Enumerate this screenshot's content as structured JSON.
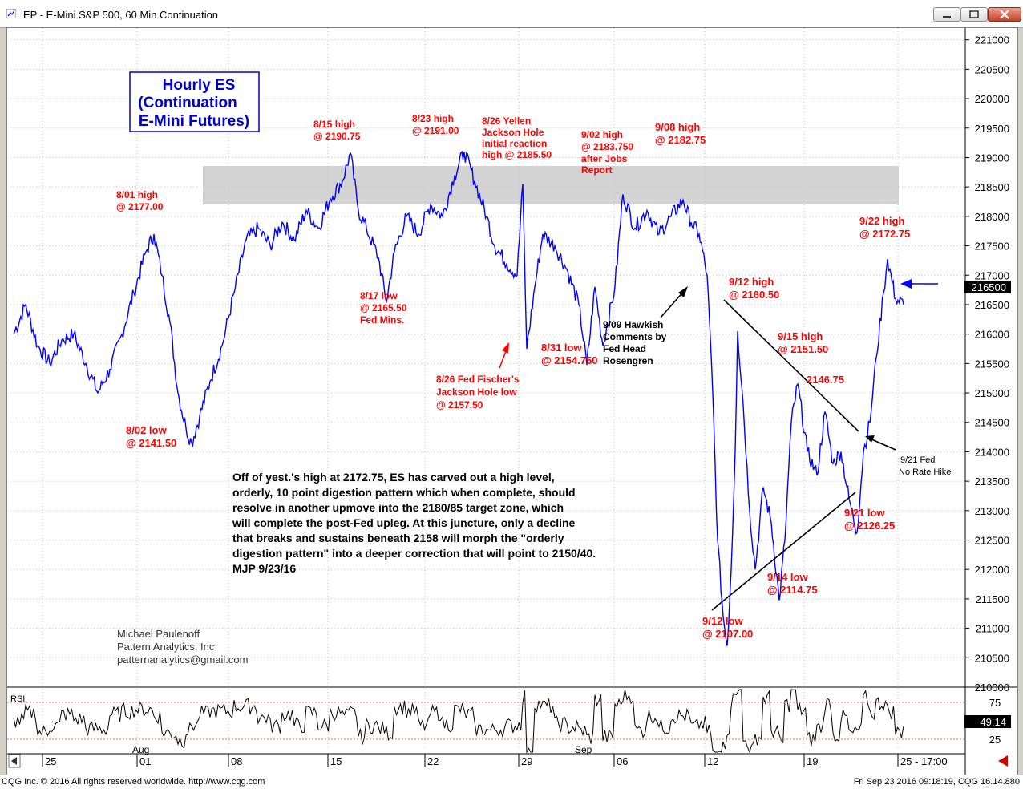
{
  "window": {
    "title": "EP - E-Mini S&P 500, 60 Min Continuation",
    "footer_left": "CQG Inc. © 2016 All rights reserved worldwide. http://www.cqg.com",
    "footer_right": "Fri Sep 23 2016 09:18:19, CQG 16.14.880"
  },
  "chart_data": {
    "type": "line",
    "title_box": [
      "Hourly ES",
      "(Continuation",
      "E-Mini Futures)"
    ],
    "ylim": [
      2100,
      2212
    ],
    "y_ticks": [
      210000,
      210500,
      211000,
      211500,
      212000,
      212500,
      213000,
      213500,
      214000,
      214500,
      215000,
      215500,
      216000,
      216500,
      217000,
      217500,
      218000,
      218500,
      219000,
      219500,
      220000,
      220500,
      221000
    ],
    "x_tick_labels": [
      "25",
      "01",
      "08",
      "15",
      "22",
      "29",
      "06",
      "12",
      "19",
      "25 - 17:00"
    ],
    "month_labels": [
      "Aug",
      "Sep"
    ],
    "last_price_label": "216500",
    "rsi": {
      "label": "RSI",
      "levels": [
        "75",
        "25"
      ],
      "value_label": "49.14"
    },
    "series": [
      {
        "values": [
          [
            0,
            2160
          ],
          [
            15,
            2165
          ],
          [
            30,
            2158
          ],
          [
            45,
            2155
          ],
          [
            60,
            2159
          ],
          [
            75,
            2160
          ],
          [
            90,
            2155
          ],
          [
            105,
            2150
          ],
          [
            120,
            2154
          ],
          [
            135,
            2160
          ],
          [
            150,
            2167
          ],
          [
            165,
            2174
          ],
          [
            175,
            2177
          ],
          [
            185,
            2170
          ],
          [
            195,
            2162
          ],
          [
            205,
            2150
          ],
          [
            215,
            2144
          ],
          [
            222,
            2141.5
          ],
          [
            232,
            2146
          ],
          [
            245,
            2152
          ],
          [
            260,
            2158
          ],
          [
            275,
            2167
          ],
          [
            290,
            2176
          ],
          [
            305,
            2178
          ],
          [
            320,
            2175
          ],
          [
            335,
            2179
          ],
          [
            350,
            2176
          ],
          [
            365,
            2181
          ],
          [
            380,
            2178
          ],
          [
            395,
            2183
          ],
          [
            410,
            2186
          ],
          [
            420,
            2190.75
          ],
          [
            430,
            2181
          ],
          [
            440,
            2178
          ],
          [
            455,
            2173
          ],
          [
            465,
            2165.5
          ],
          [
            475,
            2174
          ],
          [
            490,
            2180
          ],
          [
            505,
            2177
          ],
          [
            520,
            2182
          ],
          [
            535,
            2180
          ],
          [
            550,
            2187
          ],
          [
            562,
            2191
          ],
          [
            575,
            2186
          ],
          [
            590,
            2180
          ],
          [
            600,
            2175
          ],
          [
            615,
            2172
          ],
          [
            628,
            2170
          ],
          [
            635,
            2185.5
          ],
          [
            640,
            2157.5
          ],
          [
            650,
            2168
          ],
          [
            660,
            2177
          ],
          [
            675,
            2175
          ],
          [
            690,
            2171
          ],
          [
            705,
            2165
          ],
          [
            715,
            2154.75
          ],
          [
            725,
            2168
          ],
          [
            735,
            2158
          ],
          [
            750,
            2168
          ],
          [
            760,
            2183.75
          ],
          [
            775,
            2178
          ],
          [
            790,
            2181
          ],
          [
            805,
            2177
          ],
          [
            820,
            2180
          ],
          [
            835,
            2182.75
          ],
          [
            845,
            2179
          ],
          [
            855,
            2177
          ],
          [
            865,
            2170
          ],
          [
            872,
            2150
          ],
          [
            878,
            2125
          ],
          [
            885,
            2112
          ],
          [
            890,
            2107
          ],
          [
            895,
            2120
          ],
          [
            900,
            2140
          ],
          [
            903,
            2160.5
          ],
          [
            910,
            2148
          ],
          [
            918,
            2130
          ],
          [
            925,
            2120
          ],
          [
            935,
            2134
          ],
          [
            945,
            2128
          ],
          [
            955,
            2114.75
          ],
          [
            962,
            2125
          ],
          [
            970,
            2145
          ],
          [
            978,
            2151.5
          ],
          [
            990,
            2140
          ],
          [
            1002,
            2136
          ],
          [
            1012,
            2146.75
          ],
          [
            1022,
            2138
          ],
          [
            1032,
            2140
          ],
          [
            1042,
            2132
          ],
          [
            1052,
            2126.25
          ],
          [
            1060,
            2140
          ],
          [
            1068,
            2145
          ],
          [
            1076,
            2156
          ],
          [
            1085,
            2167
          ],
          [
            1090,
            2172.75
          ],
          [
            1100,
            2166
          ],
          [
            1110,
            2165
          ]
        ]
      }
    ],
    "annotations": {
      "a801": [
        "8/01 high",
        "@ 2177.00"
      ],
      "a802": [
        "8/02 low",
        "@ 2141.50"
      ],
      "a815": [
        "8/15 high",
        "@ 2190.75"
      ],
      "a817": [
        "8/17 low",
        "@ 2165.50",
        "Fed Mins."
      ],
      "a823": [
        "8/23 high",
        "@ 2191.00"
      ],
      "a826y": [
        "8/26 Yellen",
        "Jackson Hole",
        "initial reaction",
        "high @ 2185.50"
      ],
      "a826f": [
        "8/26 Fed Fischer's",
        "Jackson Hole low",
        "@ 2157.50"
      ],
      "a831": [
        "8/31 low",
        "@ 2154.750"
      ],
      "a902": [
        "9/02 high",
        "@ 2183.750",
        "after Jobs",
        "Report"
      ],
      "a908": [
        "9/08 high",
        "@ 2182.75"
      ],
      "a909": [
        "9/09 Hawkish",
        "Comments by",
        "Fed Head",
        "Rosengren"
      ],
      "a912h": [
        "9/12 high",
        "@ 2160.50"
      ],
      "a912l": [
        "9/12 low",
        "@ 2107.00"
      ],
      "a914": [
        "9/14 low",
        "@ 2114.75"
      ],
      "a915": [
        "9/15 high",
        "@ 2151.50"
      ],
      "a2146": [
        "2146.75"
      ],
      "a921l": [
        "9/21 low",
        "@ 2126.25"
      ],
      "a921f": [
        "9/21 Fed",
        "No Rate Hike"
      ],
      "a922": [
        "9/22 high",
        "@ 2172.75"
      ]
    },
    "commentary": [
      "Off of yest.'s high at 2172.75, ES has carved out a high level,",
      "orderly, 10 point digestion pattern which when complete, should",
      "resolve in another upmove into the 2180/85 target zone, which",
      "will complete the post-Fed upleg. At this juncture, only a decline",
      "that breaks and sustains beneath 2158 will morph the \"orderly",
      "digestion pattern\" into a deeper correction that will point to 2150/40.",
      "MJP 9/23/16"
    ],
    "author": [
      "Michael Paulenoff",
      "Pattern Analytics, Inc",
      "patternanalytics@gmail.com"
    ],
    "colors": {
      "price": "#0000ff",
      "annotation": "#ff0000",
      "text": "#000000",
      "zone": "#c8c8c8"
    }
  }
}
